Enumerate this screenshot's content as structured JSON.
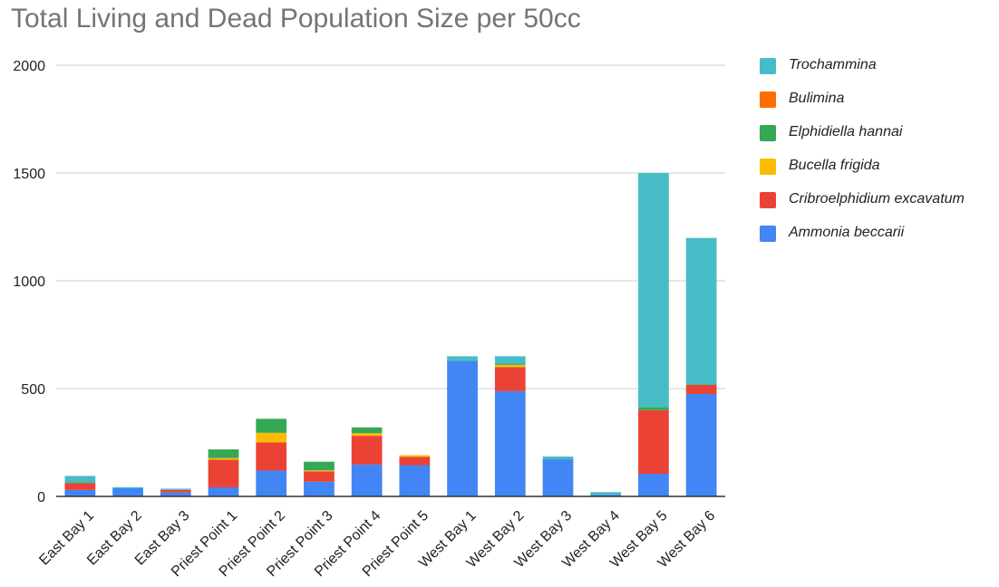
{
  "chart_data": {
    "type": "bar",
    "stacked": true,
    "title": "Total Living and Dead Population Size per 50cc",
    "xlabel": "",
    "ylabel": "",
    "ylim": [
      0,
      2000
    ],
    "yticks": [
      0,
      500,
      1000,
      1500,
      2000
    ],
    "grid": true,
    "legend_position": "right",
    "categories": [
      "East Bay 1",
      "East Bay 2",
      "East Bay 3",
      "Priest Point 1",
      "Priest Point 2",
      "Priest Point 3",
      "Priest Point 4",
      "Priest Point 5",
      "West Bay 1",
      "West Bay 2",
      "West Bay 3",
      "West Bay 4",
      "West Bay 5",
      "West Bay 6"
    ],
    "series": [
      {
        "name": "Ammonia beccarii",
        "color": "#4285f4",
        "values": [
          30,
          38,
          18,
          42,
          120,
          68,
          148,
          145,
          628,
          488,
          172,
          8,
          105,
          475
        ]
      },
      {
        "name": "Cribroelphidium excavatum",
        "color": "#ea4335",
        "values": [
          32,
          0,
          12,
          128,
          130,
          48,
          133,
          38,
          0,
          112,
          0,
          0,
          295,
          42
        ]
      },
      {
        "name": "Bucella frigida",
        "color": "#fbbc04",
        "values": [
          0,
          0,
          0,
          8,
          45,
          5,
          12,
          8,
          0,
          10,
          0,
          0,
          0,
          0
        ]
      },
      {
        "name": "Elphidiella hannai",
        "color": "#34a853",
        "values": [
          3,
          0,
          0,
          40,
          65,
          40,
          27,
          0,
          0,
          6,
          0,
          0,
          15,
          2
        ]
      },
      {
        "name": "Bulimina",
        "color": "#ff6d01",
        "values": [
          0,
          0,
          0,
          0,
          0,
          0,
          0,
          0,
          0,
          0,
          0,
          0,
          0,
          0
        ]
      },
      {
        "name": "Trochammina",
        "color": "#46bdc6",
        "values": [
          30,
          5,
          6,
          0,
          0,
          0,
          0,
          0,
          22,
          34,
          13,
          12,
          1085,
          680
        ]
      }
    ],
    "legend_order": [
      "Trochammina",
      "Bulimina",
      "Elphidiella hannai",
      "Bucella frigida",
      "Cribroelphidium excavatum",
      "Ammonia beccarii"
    ]
  }
}
